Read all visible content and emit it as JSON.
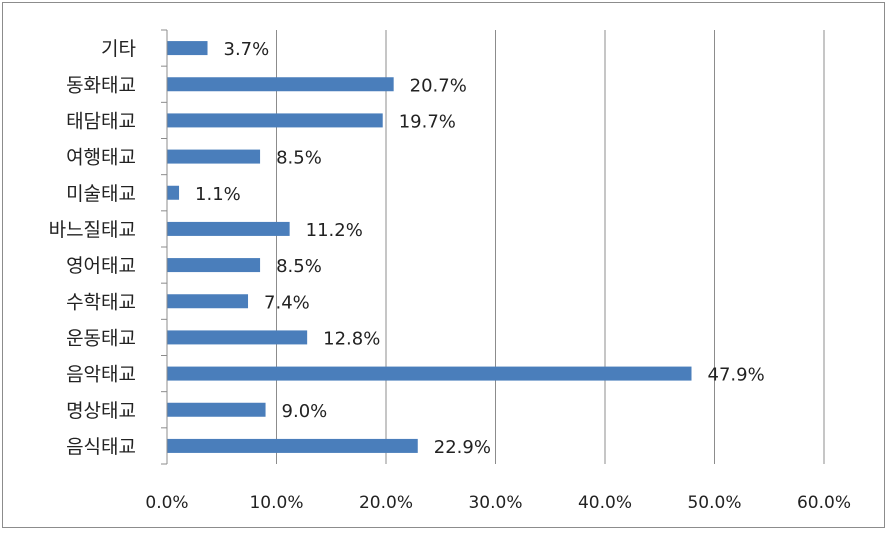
{
  "chart_data": {
    "type": "bar",
    "orientation": "horizontal",
    "categories": [
      "음식태교",
      "명상태교",
      "음악태교",
      "운동태교",
      "수학태교",
      "영어태교",
      "바느질태교",
      "미술태교",
      "여행태교",
      "태담태교",
      "동화태교",
      "기타"
    ],
    "values": [
      22.9,
      9.0,
      47.9,
      12.8,
      7.4,
      8.5,
      11.2,
      1.1,
      8.5,
      19.7,
      20.7,
      3.7
    ],
    "value_labels": [
      "22.9%",
      "9.0%",
      "47.9%",
      "12.8%",
      "7.4%",
      "8.5%",
      "11.2%",
      "1.1%",
      "8.5%",
      "19.7%",
      "20.7%",
      "3.7%"
    ],
    "x_ticks": [
      "0.0%",
      "10.0%",
      "20.0%",
      "30.0%",
      "40.0%",
      "50.0%",
      "60.0%"
    ],
    "xlim": [
      0,
      60
    ],
    "grid": "vertical",
    "legend": "none",
    "bar_color": "#4a7ebb",
    "grid_color": "#8c8c8c"
  }
}
